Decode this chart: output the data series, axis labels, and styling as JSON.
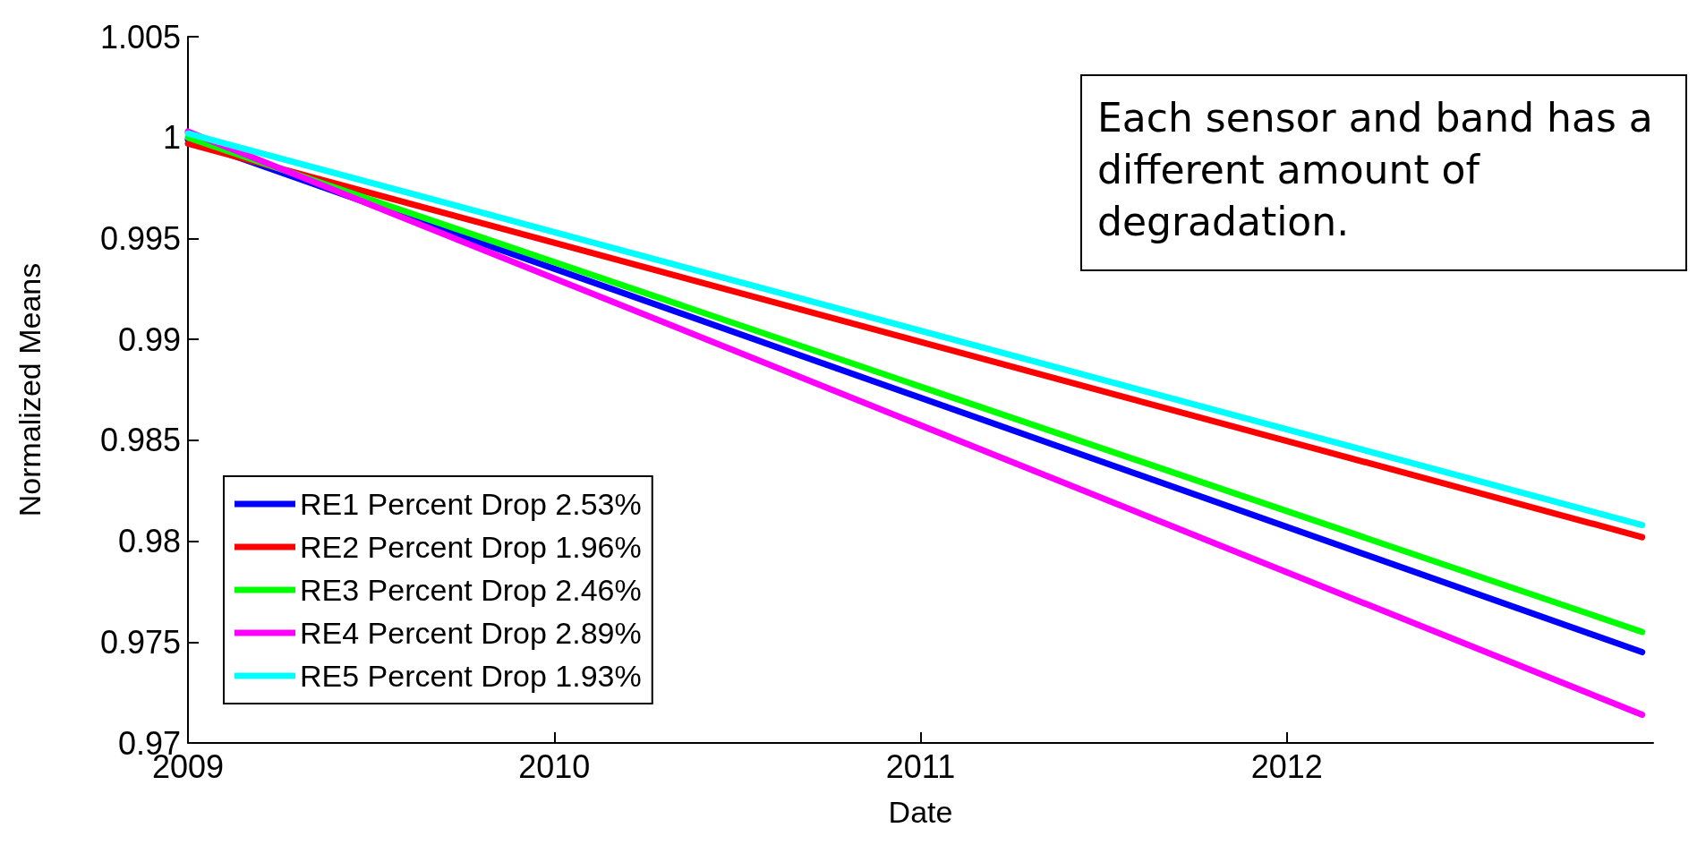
{
  "chart_data": {
    "type": "line",
    "xlabel": "Date",
    "ylabel": "Normalized Means",
    "annotations": [
      "Each sensor and band has a different amount of degradation."
    ],
    "x": [
      2009,
      2012.97
    ],
    "series": [
      {
        "name": "RE1 Percent Drop 2.53%",
        "color": "#0000ff",
        "values": [
          0.9999,
          0.9745
        ]
      },
      {
        "name": "RE2 Percent Drop 1.96%",
        "color": "#ff0000",
        "values": [
          0.9997,
          0.9802
        ]
      },
      {
        "name": "RE3 Percent Drop 2.46%",
        "color": "#00ff00",
        "values": [
          1.0,
          0.9755
        ]
      },
      {
        "name": "RE4 Percent Drop 2.89%",
        "color": "#ff00ff",
        "values": [
          1.0003,
          0.9714
        ]
      },
      {
        "name": "RE5 Percent Drop 1.93%",
        "color": "#00ffff",
        "values": [
          1.0002,
          0.9808
        ]
      }
    ],
    "xlim": [
      2009,
      2013
    ],
    "xticks": [
      2009,
      2010,
      2011,
      2012
    ],
    "ylim": [
      0.97,
      1.005
    ],
    "yticks": [
      0.97,
      0.975,
      0.98,
      0.985,
      0.99,
      0.995,
      1,
      1.005
    ],
    "grid": false,
    "legend": "bottom left",
    "marker": "none",
    "line_style": "solid"
  }
}
